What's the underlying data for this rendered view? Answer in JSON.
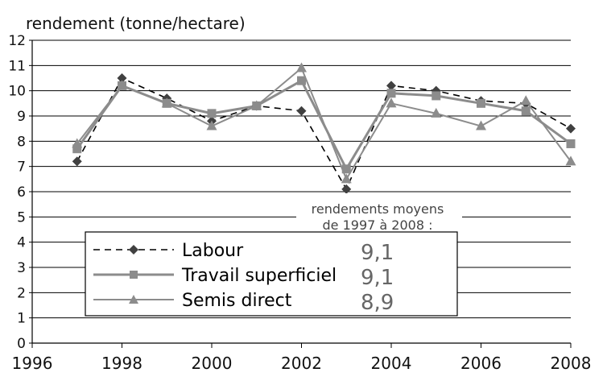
{
  "chart_data": {
    "type": "line",
    "ylabel": "rendement (tonne/hectare)",
    "xlim": [
      1996,
      2008
    ],
    "ylim": [
      0,
      12
    ],
    "x_ticks": [
      1996,
      1998,
      2000,
      2002,
      2004,
      2006,
      2008
    ],
    "y_ticks": [
      0,
      1,
      2,
      3,
      4,
      5,
      6,
      7,
      8,
      9,
      10,
      11,
      12
    ],
    "grid": "horizontal",
    "x": [
      1997,
      1998,
      1999,
      2000,
      2001,
      2002,
      2003,
      2004,
      2005,
      2006,
      2007,
      2008
    ],
    "series": [
      {
        "name": "Labour",
        "marker": "diamond",
        "line": "dashed",
        "color": "#000000",
        "marker_color": "#404040",
        "values": [
          7.2,
          10.5,
          9.7,
          8.8,
          9.4,
          9.2,
          6.1,
          10.2,
          10.0,
          9.6,
          9.5,
          8.5
        ],
        "average": "9,1"
      },
      {
        "name": "Travail superficiel",
        "marker": "square",
        "line": "solid-thick",
        "color": "#8c8c8c",
        "marker_color": "#8c8c8c",
        "values": [
          7.7,
          10.2,
          9.5,
          9.1,
          9.4,
          10.4,
          6.9,
          9.9,
          9.8,
          9.5,
          9.2,
          7.9
        ],
        "average": "9,1"
      },
      {
        "name": "Semis direct",
        "marker": "triangle",
        "line": "solid",
        "color": "#8c8c8c",
        "marker_color": "#8c8c8c",
        "values": [
          7.9,
          10.2,
          9.5,
          8.6,
          9.4,
          10.9,
          6.5,
          9.5,
          9.1,
          8.6,
          9.6,
          7.2
        ],
        "average": "8,9"
      }
    ],
    "annotation": {
      "line1": "rendements moyens",
      "line2": "de 1997 à 2008 :"
    },
    "legend_placement": "bottom-center"
  }
}
